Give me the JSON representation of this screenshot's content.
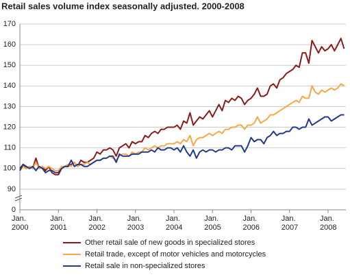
{
  "chart_data": {
    "type": "line",
    "title": "Retail sales volume index seasonally adjusted. 2000-2008",
    "categories": [
      "Jan.\n2000",
      null,
      null,
      null,
      null,
      null,
      null,
      null,
      null,
      null,
      null,
      null,
      "Jan.\n2001",
      null,
      null,
      null,
      null,
      null,
      null,
      null,
      null,
      null,
      null,
      null,
      "Jan.\n2002",
      null,
      null,
      null,
      null,
      null,
      null,
      null,
      null,
      null,
      null,
      null,
      "Jan.\n2003",
      null,
      null,
      null,
      null,
      null,
      null,
      null,
      null,
      null,
      null,
      null,
      "Jan.\n2004",
      null,
      null,
      null,
      null,
      null,
      null,
      null,
      null,
      null,
      null,
      null,
      "Jan.\n2005",
      null,
      null,
      null,
      null,
      null,
      null,
      null,
      null,
      null,
      null,
      null,
      "Jan.\n2006",
      null,
      null,
      null,
      null,
      null,
      null,
      null,
      null,
      null,
      null,
      null,
      "Jan.\n2007",
      null,
      null,
      null,
      null,
      null,
      null,
      null,
      null,
      null,
      null,
      null,
      "Jan.\n2008",
      null,
      null,
      null,
      null,
      null
    ],
    "series": [
      {
        "name": "Other retail sale of new goods in specialized stores",
        "color": "#8b1a1a",
        "values": [
          100,
          102,
          100,
          101,
          100,
          105,
          100,
          101,
          99,
          101,
          98,
          97,
          97,
          100,
          101,
          101,
          102,
          103,
          101,
          104,
          103,
          103,
          104,
          105,
          108,
          107,
          109,
          109,
          110,
          109,
          106,
          110,
          111,
          112,
          110,
          113,
          112,
          113,
          113,
          116,
          115,
          117,
          118,
          117,
          119,
          119,
          120,
          120,
          120,
          121,
          119,
          123,
          122,
          127,
          121,
          123,
          125,
          124,
          126,
          128,
          125,
          128,
          131,
          128,
          133,
          132,
          134,
          133,
          135,
          134,
          131,
          133,
          134,
          136,
          139,
          135,
          135,
          136,
          140,
          141,
          139,
          143,
          144,
          146,
          147,
          148,
          150,
          149,
          156,
          156,
          151,
          162,
          159,
          156,
          159,
          157,
          158,
          160,
          157,
          160,
          163,
          158
        ]
      },
      {
        "name": "Retail trade, except of motor vehicles and motorcycles",
        "color": "#f4a84a",
        "values": [
          99,
          101,
          100,
          101,
          100,
          103,
          100,
          101,
          100,
          101,
          100,
          99,
          99,
          101,
          101,
          102,
          101,
          103,
          101,
          102,
          102,
          103,
          102,
          103,
          104,
          104,
          105,
          105,
          106,
          105,
          104,
          106,
          107,
          107,
          106,
          108,
          107,
          108,
          108,
          110,
          109,
          110,
          111,
          110,
          111,
          111,
          112,
          112,
          112,
          113,
          112,
          114,
          113,
          116,
          111,
          114,
          115,
          115,
          116,
          117,
          116,
          117,
          118,
          117,
          119,
          119,
          120,
          120,
          121,
          121,
          119,
          121,
          121,
          122,
          125,
          122,
          123,
          124,
          126,
          126,
          127,
          128,
          129,
          130,
          131,
          132,
          133,
          132,
          135,
          134,
          134,
          140,
          137,
          136,
          138,
          137,
          138,
          139,
          138,
          139,
          141,
          140
        ]
      },
      {
        "name": "Retail sale in non-specialized stores",
        "color": "#1f3a8a",
        "values": [
          99,
          102,
          101,
          100,
          101,
          99,
          101,
          100,
          98,
          99,
          99,
          98,
          98,
          100,
          101,
          101,
          104,
          101,
          102,
          102,
          101,
          101,
          102,
          103,
          104,
          104,
          105,
          105,
          106,
          106,
          103,
          107,
          106,
          106,
          106,
          107,
          107,
          107,
          108,
          108,
          108,
          109,
          108,
          110,
          109,
          109,
          110,
          110,
          109,
          110,
          108,
          111,
          108,
          106,
          109,
          105,
          108,
          109,
          108,
          109,
          109,
          108,
          109,
          109,
          110,
          110,
          109,
          111,
          111,
          111,
          108,
          111,
          115,
          113,
          114,
          114,
          112,
          115,
          116,
          118,
          116,
          117,
          117,
          118,
          118,
          120,
          120,
          119,
          120,
          120,
          124,
          121,
          122,
          123,
          124,
          125,
          125,
          123,
          124,
          125,
          126,
          126
        ]
      }
    ],
    "ylim": [
      0,
      170
    ],
    "y_break": [
      0,
      90
    ],
    "yticks": [
      0,
      90,
      100,
      110,
      120,
      130,
      140,
      150,
      160,
      170
    ],
    "grid": true
  }
}
